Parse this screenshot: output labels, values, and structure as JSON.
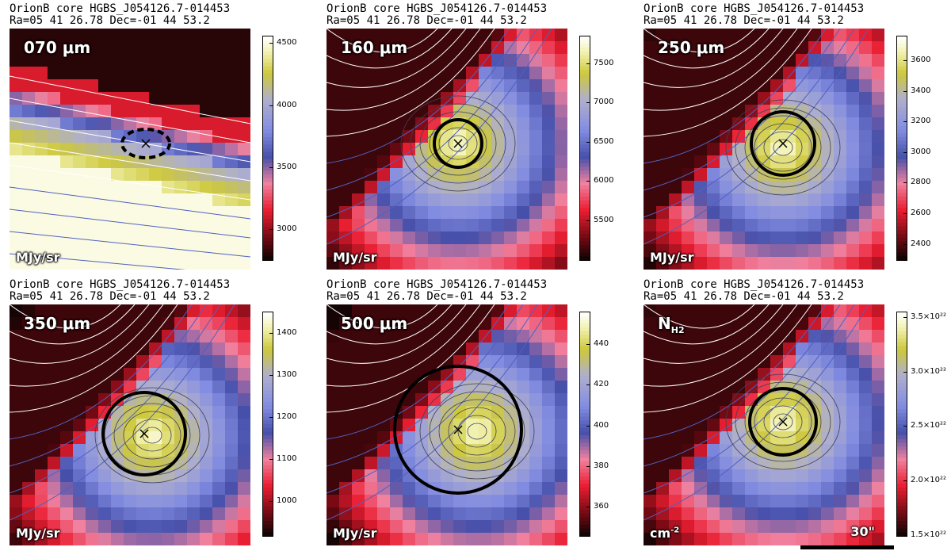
{
  "header": {
    "line1": "OrionB core HGBS_J054126.7-014453",
    "line2": "Ra=05 41 26.78 Dec=-01 44 53.2"
  },
  "scale_bar_label": "30\"",
  "panels": [
    {
      "id": "p070",
      "label": "070 μm",
      "unit": "MJy/sr",
      "ticks": [
        "4500",
        "4000",
        "3500",
        "3000"
      ],
      "tick_values": [
        4500,
        4000,
        3500,
        3000
      ],
      "range": [
        2760,
        4560
      ],
      "palette": "cubehelix",
      "peak": "x",
      "circle": "dashed-ellipse"
    },
    {
      "id": "p160",
      "label": "160 μm",
      "unit": "MJy/sr",
      "ticks": [
        "7500",
        "7000",
        "6500",
        "6000",
        "5500"
      ],
      "tick_values": [
        7500,
        7000,
        6500,
        6000,
        5500
      ],
      "range": [
        5000,
        7850
      ],
      "palette": "cubehelix",
      "peak": "x",
      "circle": "solid"
    },
    {
      "id": "p250",
      "label": "250 μm",
      "unit": "MJy/sr",
      "ticks": [
        "3600",
        "3400",
        "3200",
        "3000",
        "2800",
        "2600",
        "2400"
      ],
      "tick_values": [
        3600,
        3400,
        3200,
        3000,
        2800,
        2600,
        2400
      ],
      "range": [
        2300,
        3760
      ],
      "palette": "cubehelix",
      "peak": "x",
      "circle": "solid"
    },
    {
      "id": "p350",
      "label": "350 μm",
      "unit": "MJy/sr",
      "ticks": [
        "1400",
        "1300",
        "1200",
        "1100",
        "1000"
      ],
      "tick_values": [
        1400,
        1300,
        1200,
        1100,
        1000
      ],
      "range": [
        920,
        1450
      ],
      "palette": "cubehelix",
      "peak": "x",
      "circle": "solid"
    },
    {
      "id": "p500",
      "label": "500 μm",
      "unit": "MJy/sr",
      "ticks": [
        "440",
        "420",
        "400",
        "380",
        "360"
      ],
      "tick_values": [
        440,
        420,
        400,
        380,
        360
      ],
      "range": [
        346,
        456
      ],
      "palette": "cubehelix",
      "peak": "x",
      "circle": "solid"
    },
    {
      "id": "pnh2",
      "label": "N",
      "label_sub": "H2",
      "unit": "cm",
      "unit_sup": "-2",
      "ticks": [
        "3.5×10²²",
        "3.0×10²²",
        "2.5×10²²",
        "2.0×10²²",
        "1.5×10²²"
      ],
      "tick_values": [
        3.5,
        3.0,
        2.5,
        2.0,
        1.5
      ],
      "range": [
        1.5,
        3.55
      ],
      "palette": "cubehelix",
      "peak": "x",
      "circle": "solid"
    }
  ],
  "chart_data": [
    {
      "type": "heatmap",
      "title": "OrionB core HGBS_J054126.7-014453",
      "subtitle": "Ra=05 41 26.78 Dec=-01 44 53.2",
      "band": "070 μm",
      "unit": "MJy/sr",
      "colorbar_ticks": [
        4500,
        4000,
        3500,
        3000
      ]
    },
    {
      "type": "heatmap",
      "title": "OrionB core HGBS_J054126.7-014453",
      "subtitle": "Ra=05 41 26.78 Dec=-01 44 53.2",
      "band": "160 μm",
      "unit": "MJy/sr",
      "colorbar_ticks": [
        7500,
        7000,
        6500,
        6000,
        5500
      ]
    },
    {
      "type": "heatmap",
      "title": "OrionB core HGBS_J054126.7-014453",
      "subtitle": "Ra=05 41 26.78 Dec=-01 44 53.2",
      "band": "250 μm",
      "unit": "MJy/sr",
      "colorbar_ticks": [
        3600,
        3400,
        3200,
        3000,
        2800,
        2600,
        2400
      ]
    },
    {
      "type": "heatmap",
      "title": "OrionB core HGBS_J054126.7-014453",
      "subtitle": "Ra=05 41 26.78 Dec=-01 44 53.2",
      "band": "350 μm",
      "unit": "MJy/sr",
      "colorbar_ticks": [
        1400,
        1300,
        1200,
        1100,
        1000
      ]
    },
    {
      "type": "heatmap",
      "title": "OrionB core HGBS_J054126.7-014453",
      "subtitle": "Ra=05 41 26.78 Dec=-01 44 53.2",
      "band": "500 μm",
      "unit": "MJy/sr",
      "colorbar_ticks": [
        440,
        420,
        400,
        380,
        360
      ]
    },
    {
      "type": "heatmap",
      "title": "OrionB core HGBS_J054126.7-014453",
      "subtitle": "Ra=05 41 26.78 Dec=-01 44 53.2",
      "band": "NH2",
      "unit": "cm-2",
      "colorbar_ticks": [
        "3.5×10²²",
        "3.0×10²²",
        "2.5×10²²",
        "2.0×10²²",
        "1.5×10²²"
      ]
    }
  ]
}
